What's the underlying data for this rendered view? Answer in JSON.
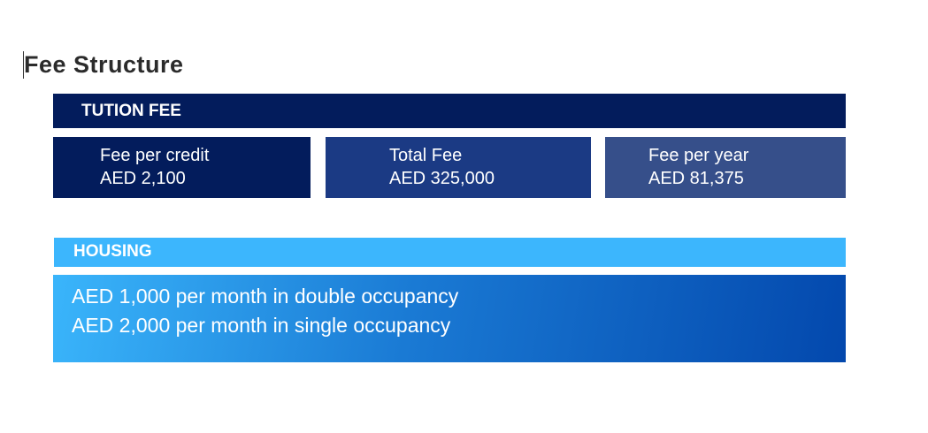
{
  "title": "Fee Structure",
  "tuition": {
    "heading": "TUTION FEE",
    "cards": [
      {
        "label": "Fee per credit",
        "value": "AED 2,100"
      },
      {
        "label": "Total Fee",
        "value": "AED 325,000"
      },
      {
        "label": "Fee per year",
        "value": "AED 81,375"
      }
    ]
  },
  "housing": {
    "heading": "HOUSING",
    "lines": [
      "AED 1,000 per month in double occupancy",
      "AED 2,000 per month in single occupancy"
    ]
  },
  "colors": {
    "navy": "#031c5c",
    "mid_blue": "#1b3a84",
    "slate_blue": "#364f8a",
    "sky": "#3cb6fd",
    "deep_blue": "#0348ad"
  }
}
